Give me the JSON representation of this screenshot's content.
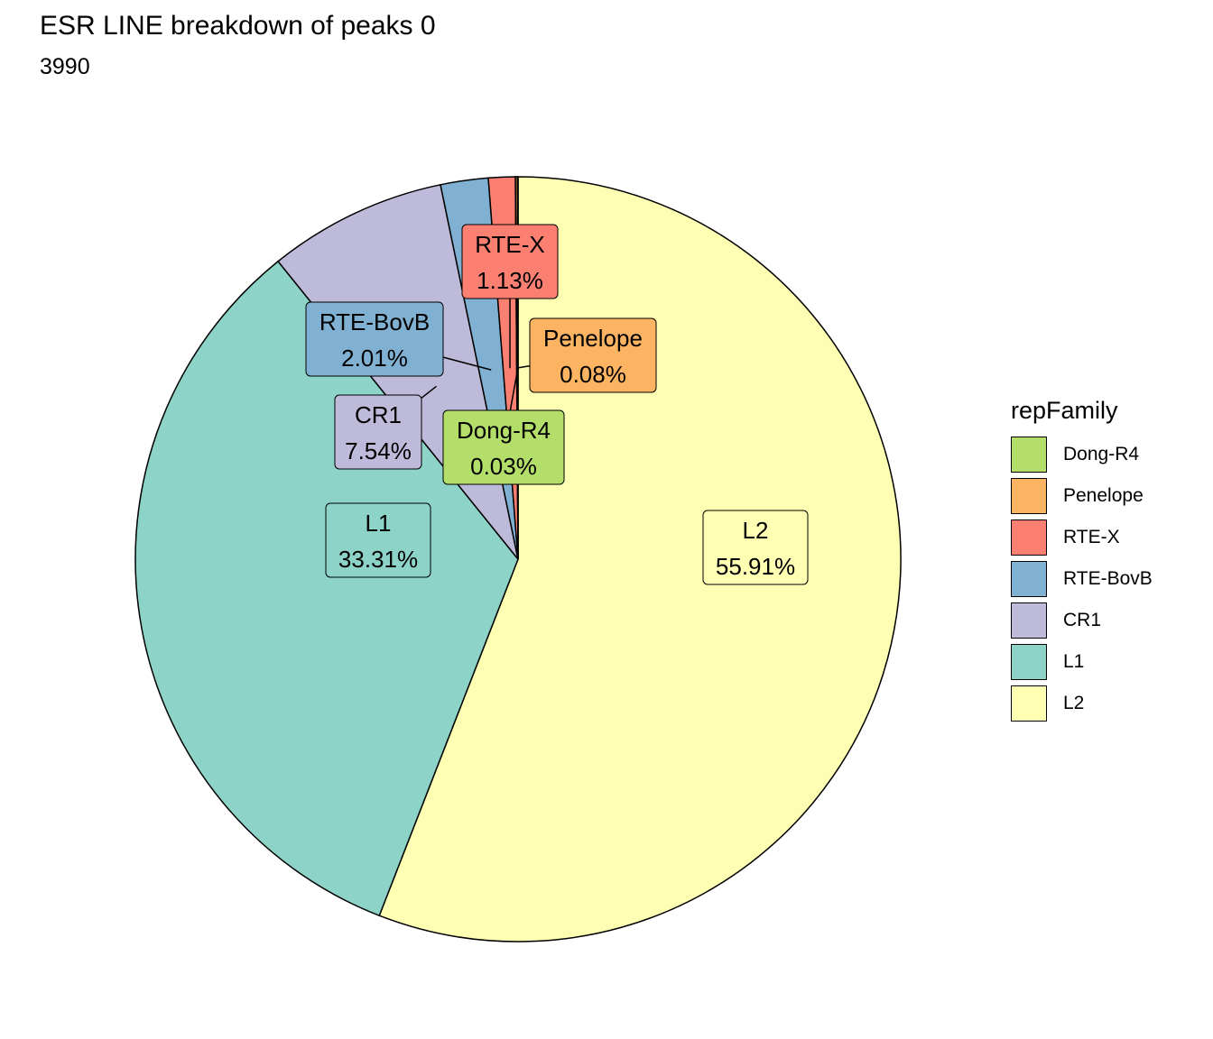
{
  "chart_data": {
    "type": "pie",
    "title": "ESR LINE breakdown of peaks 0",
    "subtitle": "3990",
    "legend_title": "repFamily",
    "legend_position": "right",
    "slices": [
      {
        "name": "L2",
        "value": 55.91,
        "label": "55.91%",
        "color": "#FFFFB3"
      },
      {
        "name": "L1",
        "value": 33.31,
        "label": "33.31%",
        "color": "#8DD3C7"
      },
      {
        "name": "CR1",
        "value": 7.54,
        "label": "7.54%",
        "color": "#BEBADA"
      },
      {
        "name": "RTE-BovB",
        "value": 2.01,
        "label": "2.01%",
        "color": "#80B1D3"
      },
      {
        "name": "RTE-X",
        "value": 1.13,
        "label": "1.13%",
        "color": "#FB8072"
      },
      {
        "name": "Penelope",
        "value": 0.08,
        "label": "0.08%",
        "color": "#FDB462"
      },
      {
        "name": "Dong-R4",
        "value": 0.03,
        "label": "0.03%",
        "color": "#B3DE69"
      }
    ],
    "legend_order": [
      "Dong-R4",
      "Penelope",
      "RTE-X",
      "RTE-BovB",
      "CR1",
      "L1",
      "L2"
    ]
  }
}
